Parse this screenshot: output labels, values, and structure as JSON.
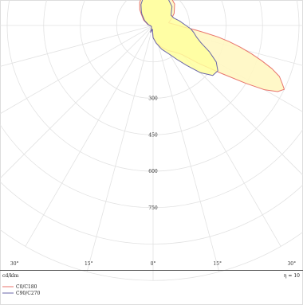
{
  "chart_data": {
    "type": "polar-line",
    "grid": true,
    "unit": "cd/klm",
    "eta": "η = 10",
    "r_max": 1050,
    "radial_ticks": [
      {
        "value": 300,
        "label": "300"
      },
      {
        "value": 450,
        "label": "450"
      },
      {
        "value": 600,
        "label": "600"
      },
      {
        "value": 750,
        "label": "750"
      }
    ],
    "angle_labels": [
      {
        "angle": -30,
        "label": "30°"
      },
      {
        "angle": -15,
        "label": "15°"
      },
      {
        "angle": 0,
        "label": "0°"
      },
      {
        "angle": 15,
        "label": "15°"
      },
      {
        "angle": 30,
        "label": "30°"
      }
    ],
    "grid_angles": [
      -90,
      -75,
      -60,
      -45,
      -30,
      -15,
      0,
      15,
      30,
      45,
      60,
      75,
      90
    ],
    "grid_rings": [
      150,
      300,
      450,
      600,
      750,
      900,
      1050
    ],
    "series": [
      {
        "name": "C0/C180",
        "stroke": "#e8736b",
        "fill": "#fff7c2",
        "points": [
          [
            -20,
            30
          ],
          [
            -10,
            15
          ],
          [
            0,
            50
          ],
          [
            10,
            70
          ],
          [
            20,
            93
          ],
          [
            30,
            118
          ],
          [
            40,
            145
          ],
          [
            45,
            170
          ],
          [
            50,
            240
          ],
          [
            55,
            345
          ],
          [
            58,
            450
          ],
          [
            60,
            530
          ],
          [
            62,
            580
          ],
          [
            64,
            600
          ],
          [
            66,
            580
          ],
          [
            68,
            560
          ],
          [
            70,
            520
          ],
          [
            72,
            470
          ],
          [
            74,
            420
          ],
          [
            76,
            370
          ],
          [
            78,
            320
          ],
          [
            80,
            270
          ],
          [
            82,
            215
          ],
          [
            84,
            175
          ],
          [
            86,
            140
          ],
          [
            88,
            115
          ],
          [
            90,
            105
          ],
          [
            100,
            65
          ],
          [
            110,
            80
          ],
          [
            120,
            100
          ],
          [
            135,
            125
          ],
          [
            150,
            140
          ],
          [
            165,
            155
          ],
          [
            180,
            158
          ],
          [
            -170,
            150
          ],
          [
            -160,
            130
          ],
          [
            -150,
            110
          ],
          [
            -140,
            85
          ],
          [
            -135,
            70
          ],
          [
            -120,
            45
          ],
          [
            -100,
            22
          ],
          [
            -80,
            10
          ],
          [
            -60,
            8
          ],
          [
            -40,
            10
          ]
        ]
      },
      {
        "name": "C90/C270",
        "stroke": "#6a66a8",
        "fill": "#ffff9e",
        "points": [
          [
            -20,
            30
          ],
          [
            -10,
            15
          ],
          [
            0,
            50
          ],
          [
            10,
            74
          ],
          [
            20,
            104
          ],
          [
            30,
            138
          ],
          [
            35,
            170
          ],
          [
            40,
            215
          ],
          [
            45,
            275
          ],
          [
            50,
            320
          ],
          [
            55,
            325
          ],
          [
            60,
            300
          ],
          [
            65,
            255
          ],
          [
            70,
            210
          ],
          [
            75,
            185
          ],
          [
            80,
            170
          ],
          [
            85,
            155
          ],
          [
            90,
            135
          ],
          [
            100,
            110
          ],
          [
            110,
            90
          ],
          [
            120,
            85
          ],
          [
            135,
            110
          ],
          [
            150,
            125
          ],
          [
            165,
            140
          ],
          [
            180,
            145
          ],
          [
            -170,
            140
          ],
          [
            -160,
            120
          ],
          [
            -150,
            100
          ],
          [
            -140,
            75
          ],
          [
            -135,
            65
          ],
          [
            -120,
            40
          ],
          [
            -100,
            20
          ],
          [
            -80,
            10
          ],
          [
            -60,
            8
          ],
          [
            -40,
            10
          ]
        ]
      }
    ]
  }
}
